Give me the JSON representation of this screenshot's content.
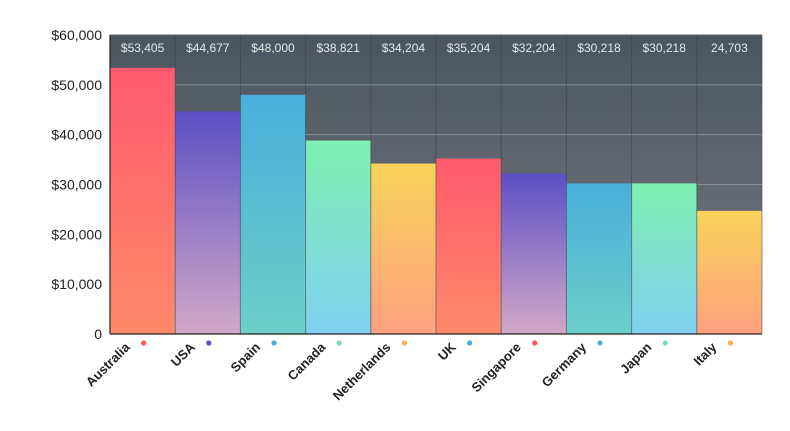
{
  "chart_data": {
    "type": "bar",
    "title": "",
    "xlabel": "",
    "ylabel": "",
    "ylim": [
      0,
      60000
    ],
    "yticks": [
      0,
      10000,
      20000,
      30000,
      40000,
      50000,
      60000
    ],
    "ytick_labels": [
      "0",
      "$10,000",
      "$20,000",
      "$30,000",
      "$40,000",
      "$50,000",
      "$60,000"
    ],
    "grid": true,
    "categories": [
      "Australia",
      "USA",
      "Spain",
      "Canada",
      "Netherlands",
      "UK",
      "Singapore",
      "Germany",
      "Japan",
      "Italy"
    ],
    "values": [
      53405,
      44677,
      48000,
      38821,
      34204,
      35204,
      32204,
      30218,
      30218,
      24703
    ],
    "data_labels": [
      "$53,405",
      "$44,677",
      "$48,000",
      "$38,821",
      "$34,204",
      "$35,204",
      "$32,204",
      "$30,218",
      "$30,218",
      "24,703"
    ],
    "colors": {
      "background_top": "#4a5560",
      "background_bottom": "#7a7a80",
      "grid": "#8b929a",
      "axis": "#222222",
      "gradients": {
        "red": [
          "#ff5a6e",
          "#ff8a6a"
        ],
        "purple": [
          "#5b4fc4",
          "#d2a8c8"
        ],
        "blue": [
          "#4aaedc",
          "#6ccfc8"
        ],
        "green": [
          "#7ef0b0",
          "#80cff0"
        ],
        "yellow": [
          "#f8d45a",
          "#ffa080"
        ]
      },
      "bar_color_keys": [
        "red",
        "purple",
        "blue",
        "green",
        "yellow",
        "red",
        "purple",
        "blue",
        "green",
        "yellow"
      ],
      "dot_colors": [
        "#ff5a5a",
        "#5b4fc4",
        "#4aaedc",
        "#6ee0b0",
        "#f8b04a",
        "#4aaedc",
        "#ff5a5a",
        "#4aaedc",
        "#6ee0c8",
        "#f8b04a"
      ]
    }
  }
}
